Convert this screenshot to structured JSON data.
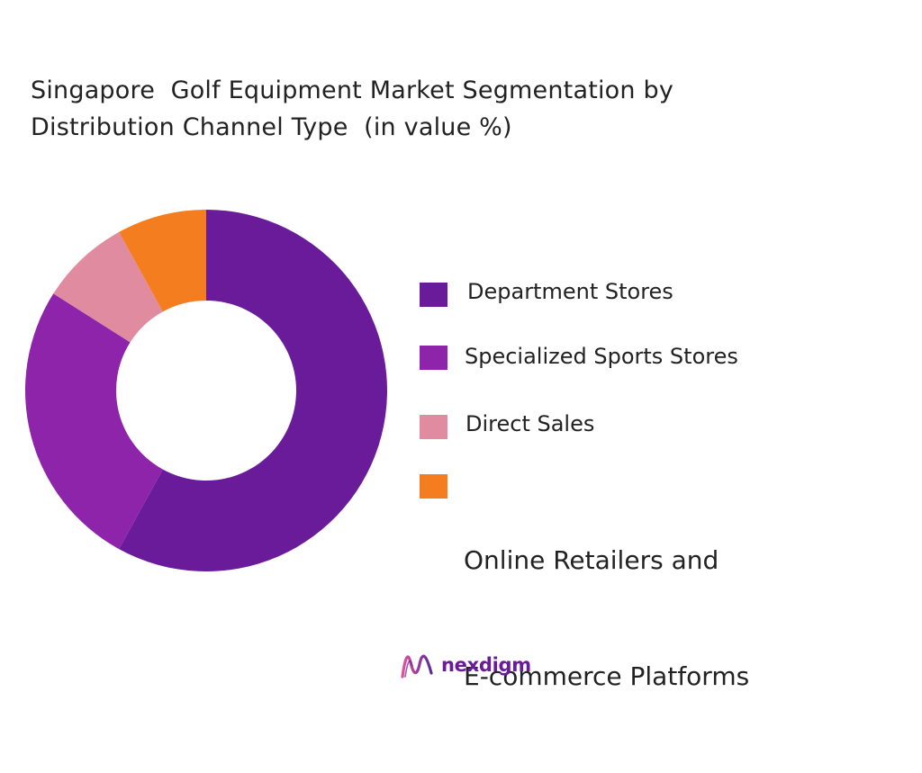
{
  "title_lines": [
    "Singapore  Golf Equipment Market Segmentation by",
    "Distribution Channel Type  (in value %)"
  ],
  "chart_data": {
    "type": "pie",
    "donut": true,
    "title": "Singapore  Golf Equipment Market Segmentation by Distribution Channel Type  (in value %)",
    "categories": [
      "Department Stores",
      "Specialized Sports Stores",
      "Direct Sales",
      "Online Retailers and E-commerce Platforms"
    ],
    "values": [
      58,
      26,
      8,
      8
    ],
    "colors": [
      "#6a1b9a",
      "#8e24aa",
      "#e08ba0",
      "#f47d20"
    ],
    "legend_position": "right"
  },
  "legend": [
    {
      "lines": [
        "Department Stores"
      ],
      "color": "#6a1b9a"
    },
    {
      "lines": [
        "Specialized Sports Stores"
      ],
      "color": "#8e24aa"
    },
    {
      "lines": [
        "Direct Sales"
      ],
      "color": "#e08ba0"
    },
    {
      "lines": [
        "Online Retailers and",
        "E-commerce Platforms"
      ],
      "color": "#f47d20"
    }
  ],
  "brand": {
    "name": "nexdigm",
    "logo_icon": "nexdigm-wave-logo-icon",
    "color": "#6a1b9a"
  }
}
